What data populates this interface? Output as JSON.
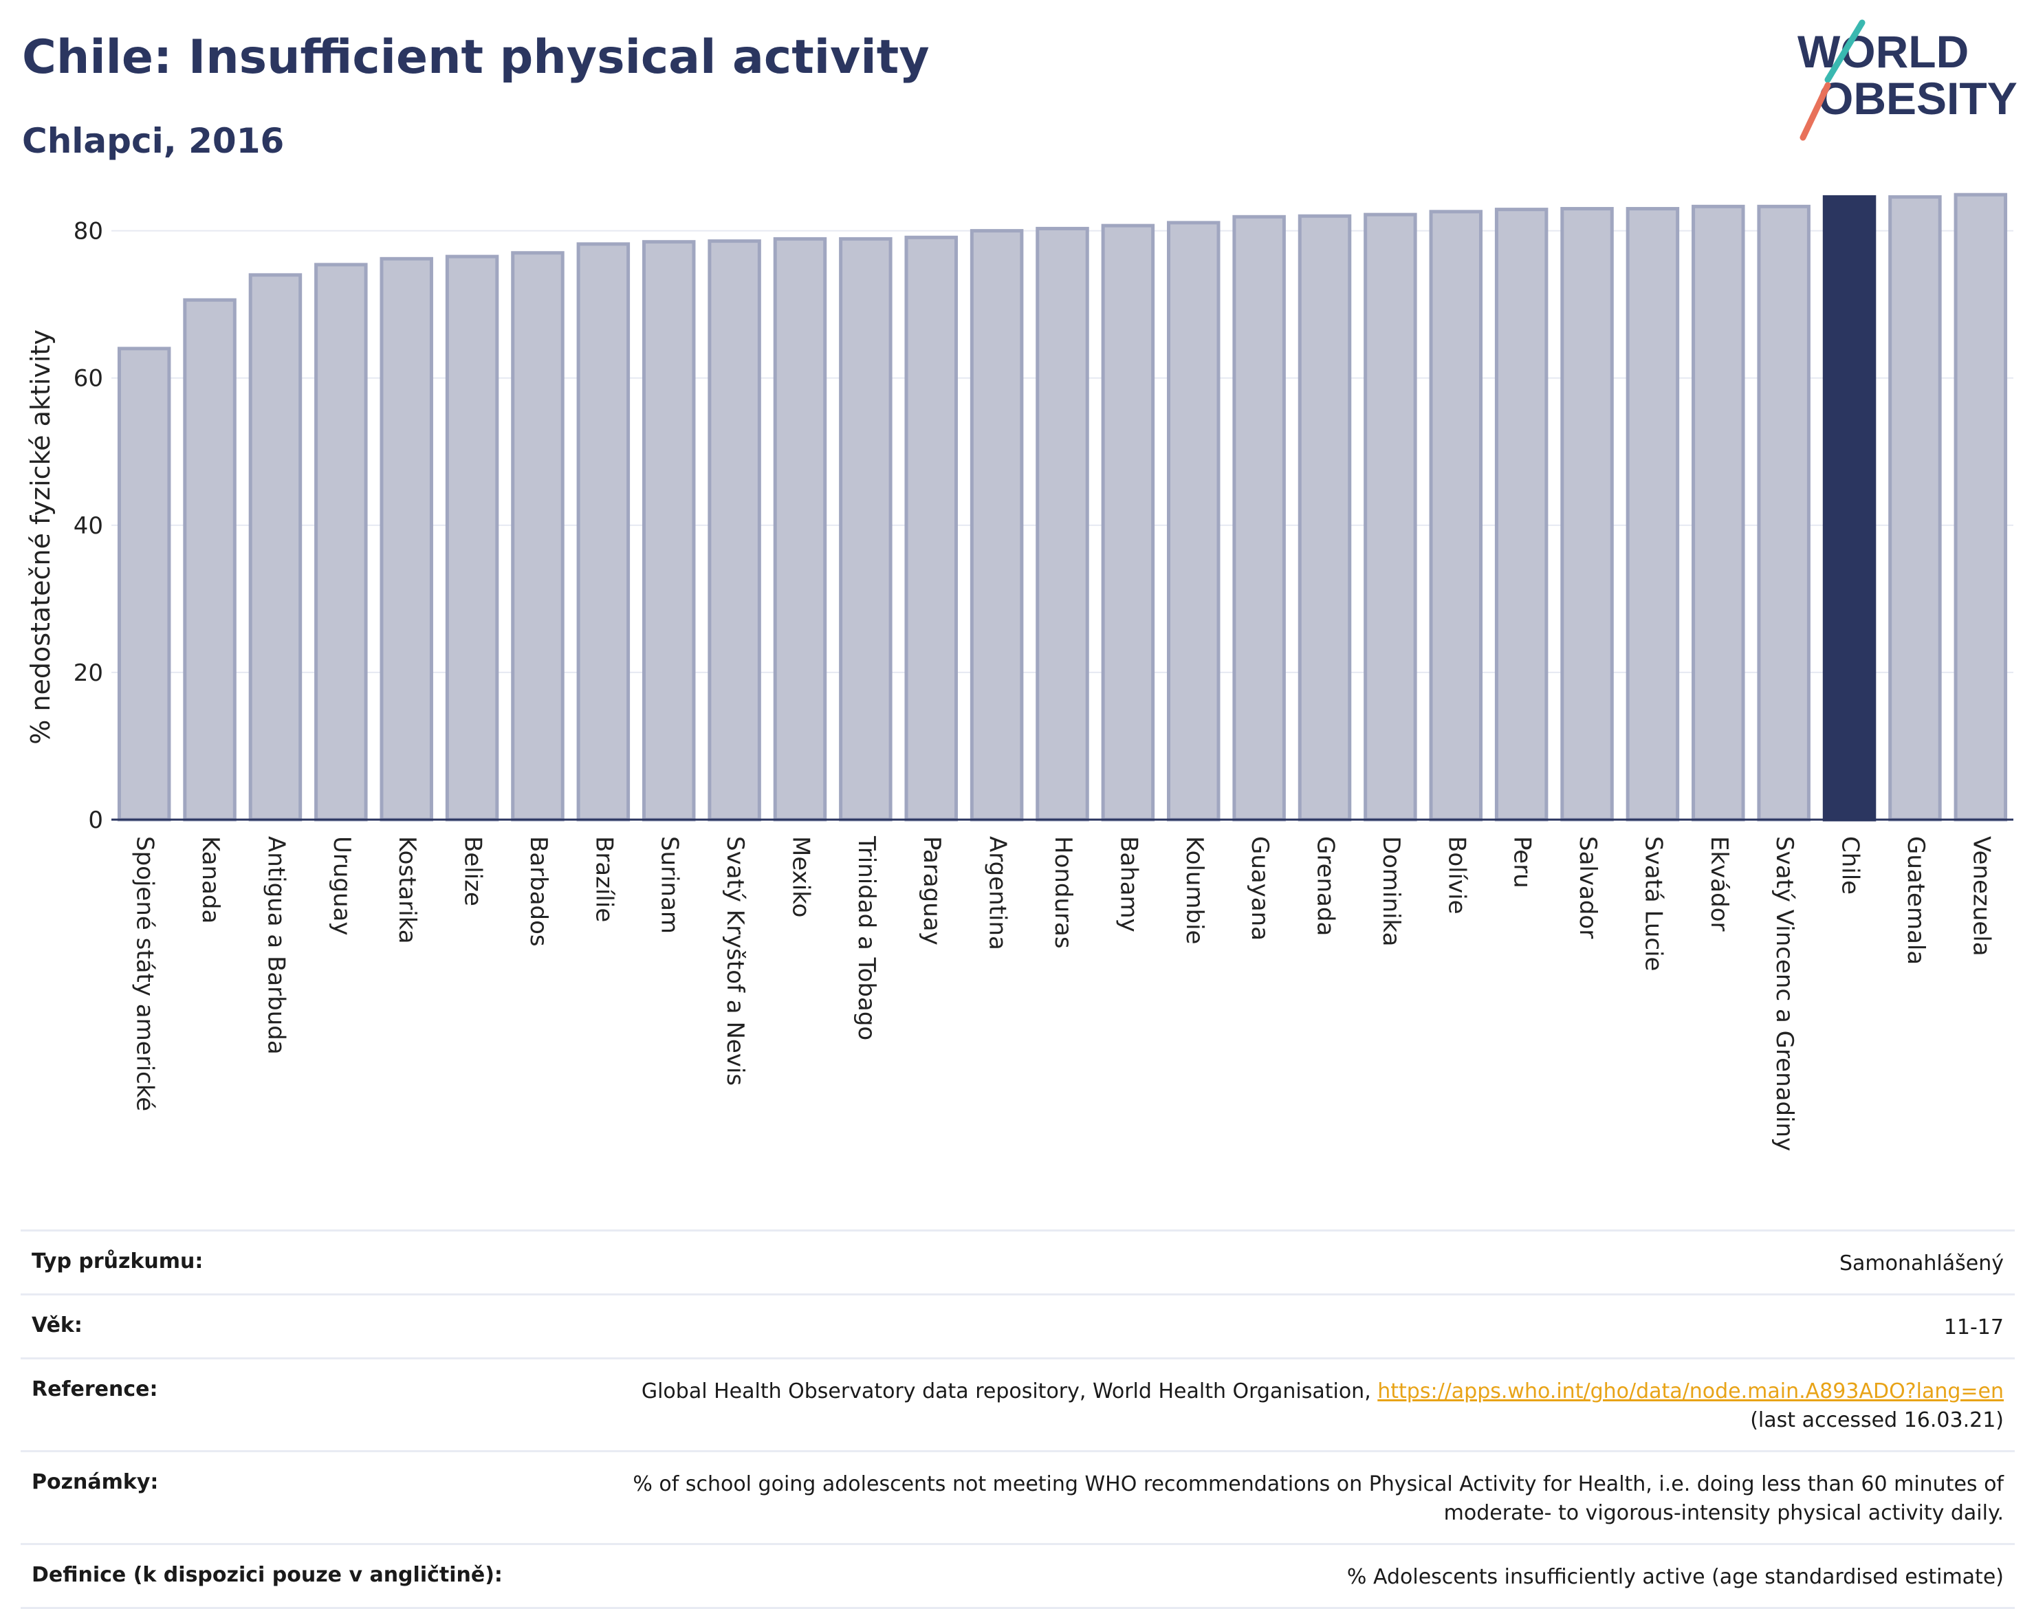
{
  "header": {
    "title": "Chile: Insufficient physical activity",
    "subtitle": "Chlapci, 2016"
  },
  "logo": {
    "line1": "WORLD",
    "line2": "OBESITY"
  },
  "colors": {
    "bar": "#c0c3d2",
    "bar_edge": "#a0a6c0",
    "highlight": "#2b3660",
    "title": "#2b3660",
    "link": "#e8a317"
  },
  "chart_data": {
    "type": "bar",
    "ylabel": "% nedostatečné fyzické aktivity",
    "xlabel": "",
    "ylim": [
      0,
      88
    ],
    "yticks": [
      0,
      20,
      40,
      60,
      80
    ],
    "grid": true,
    "highlight": "Chile",
    "categories": [
      "Spojené státy americké",
      "Kanada",
      "Antigua a Barbuda",
      "Uruguay",
      "Kostarika",
      "Belize",
      "Barbados",
      "Brazílie",
      "Surinam",
      "Svatý Kryštof a Nevis",
      "Mexiko",
      "Trinidad a Tobago",
      "Paraguay",
      "Argentina",
      "Honduras",
      "Bahamy",
      "Kolumbie",
      "Guayana",
      "Grenada",
      "Dominika",
      "Bolívie",
      "Peru",
      "Salvador",
      "Svatá Lucie",
      "Ekvádor",
      "Svatý Vincenc a Grenadiny",
      "Chile",
      "Guatemala",
      "Venezuela"
    ],
    "values": [
      64.0,
      70.6,
      74.0,
      75.4,
      76.2,
      76.5,
      77.0,
      78.2,
      78.5,
      78.6,
      78.9,
      78.9,
      79.1,
      80.0,
      80.3,
      80.7,
      81.1,
      81.9,
      82.0,
      82.2,
      82.6,
      82.9,
      83.0,
      83.0,
      83.3,
      83.3,
      84.6,
      84.6,
      84.9
    ]
  },
  "table": {
    "rows": [
      {
        "label": "Typ průzkumu:",
        "value": "Samonahlášený"
      },
      {
        "label": "Věk:",
        "value": "11-17"
      },
      {
        "label": "Reference:",
        "value": "Global Health Observatory data repository, World Health Organisation, ",
        "link": "https://apps.who.int/gho/data/node.main.A893ADO?lang=en",
        "value2": "(last accessed 16.03.21)"
      },
      {
        "label": "Poznámky:",
        "value": "% of school going adolescents not meeting WHO recommendations on Physical Activity for Health, i.e. doing less than 60 minutes of",
        "value2": "moderate- to vigorous-intensity physical activity daily."
      },
      {
        "label": "Definice (k dispozici pouze v angličtině):",
        "value": "% Adolescents insufficiently active (age standardised estimate)"
      }
    ]
  }
}
